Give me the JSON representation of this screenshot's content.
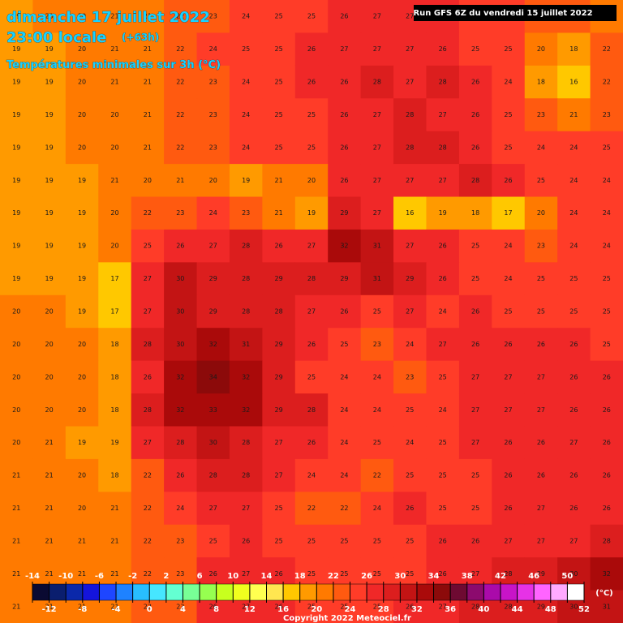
{
  "header": {
    "date": "dimanche 17 juillet 2022",
    "time": "23:00 locale",
    "lead": "(+63h)",
    "product": "Températures minimales sur 3h (°C)",
    "run": "Run GFS 6Z du vendredi 15 juillet 2022"
  },
  "grid": {
    "rows": [
      [
        19,
        20,
        20,
        21,
        21,
        22,
        23,
        24,
        25,
        25,
        26,
        27,
        27,
        26,
        25,
        24,
        22,
        22,
        20
      ],
      [
        19,
        19,
        20,
        21,
        21,
        22,
        24,
        25,
        25,
        26,
        27,
        27,
        27,
        26,
        25,
        25,
        20,
        18,
        22
      ],
      [
        19,
        19,
        20,
        21,
        21,
        22,
        23,
        24,
        25,
        26,
        26,
        28,
        27,
        28,
        26,
        24,
        18,
        16,
        22
      ],
      [
        19,
        19,
        20,
        20,
        21,
        22,
        23,
        24,
        25,
        25,
        26,
        27,
        28,
        27,
        26,
        25,
        23,
        21,
        23
      ],
      [
        19,
        19,
        20,
        20,
        21,
        22,
        23,
        24,
        25,
        25,
        26,
        27,
        28,
        28,
        26,
        25,
        24,
        24,
        25
      ],
      [
        19,
        19,
        19,
        21,
        20,
        21,
        20,
        19,
        21,
        20,
        26,
        27,
        27,
        27,
        28,
        26,
        25,
        24,
        24
      ],
      [
        19,
        19,
        19,
        20,
        22,
        23,
        24,
        23,
        21,
        19,
        29,
        27,
        16,
        19,
        18,
        17,
        20,
        24,
        24
      ],
      [
        19,
        19,
        19,
        20,
        25,
        26,
        27,
        28,
        26,
        27,
        32,
        31,
        27,
        26,
        25,
        24,
        23,
        24,
        24
      ],
      [
        19,
        19,
        19,
        17,
        27,
        30,
        29,
        28,
        29,
        28,
        29,
        31,
        29,
        26,
        25,
        24,
        25,
        25,
        25
      ],
      [
        20,
        20,
        19,
        17,
        27,
        30,
        29,
        28,
        28,
        27,
        26,
        25,
        27,
        24,
        26,
        25,
        25,
        25,
        25
      ],
      [
        20,
        20,
        20,
        18,
        28,
        30,
        32,
        31,
        29,
        26,
        25,
        23,
        24,
        27,
        26,
        26,
        26,
        26,
        25
      ],
      [
        20,
        20,
        20,
        18,
        26,
        32,
        34,
        32,
        29,
        25,
        24,
        24,
        23,
        25,
        27,
        27,
        27,
        26,
        26
      ],
      [
        20,
        20,
        20,
        18,
        28,
        32,
        33,
        32,
        29,
        28,
        24,
        24,
        25,
        24,
        27,
        27,
        27,
        26,
        26
      ],
      [
        20,
        21,
        19,
        19,
        27,
        28,
        30,
        28,
        27,
        26,
        24,
        25,
        24,
        25,
        27,
        26,
        26,
        27,
        26
      ],
      [
        21,
        21,
        20,
        18,
        22,
        26,
        28,
        28,
        27,
        24,
        24,
        22,
        25,
        25,
        25,
        26,
        26,
        26,
        26
      ],
      [
        21,
        21,
        20,
        21,
        22,
        24,
        27,
        27,
        25,
        22,
        22,
        24,
        26,
        25,
        25,
        26,
        27,
        26,
        26
      ],
      [
        21,
        21,
        21,
        21,
        22,
        23,
        25,
        26,
        25,
        25,
        25,
        25,
        25,
        26,
        26,
        27,
        27,
        27,
        28
      ],
      [
        21,
        21,
        21,
        21,
        22,
        23,
        26,
        27,
        26,
        25,
        25,
        25,
        25,
        26,
        27,
        28,
        29,
        30,
        32
      ],
      [
        21,
        21,
        21,
        21,
        22,
        23,
        26,
        27,
        26,
        25,
        25,
        25,
        26,
        27,
        28,
        28,
        29,
        30,
        31
      ]
    ]
  },
  "legend": {
    "unit": "(°C)",
    "ticks": [
      -14,
      -12,
      -10,
      -8,
      -6,
      -4,
      -2,
      0,
      2,
      4,
      6,
      8,
      10,
      12,
      14,
      16,
      18,
      20,
      22,
      24,
      26,
      28,
      30,
      32,
      34,
      36,
      38,
      40,
      42,
      44,
      46,
      48,
      50,
      52
    ],
    "colors": [
      "#0a0a32",
      "#0a1e6e",
      "#0a28aa",
      "#1414dc",
      "#1e46ff",
      "#1e82ff",
      "#28beff",
      "#46e6ff",
      "#64ffd2",
      "#78ff96",
      "#96ff50",
      "#c8ff1e",
      "#f0ff1e",
      "#ffff50",
      "#ffe650",
      "#ffc800",
      "#ff9a00",
      "#ff7a00",
      "#ff5a10",
      "#ff3c28",
      "#f02828",
      "#dc1e1e",
      "#c31414",
      "#aa0a0a",
      "#8c0a0a",
      "#6e0a32",
      "#8c0a6e",
      "#aa0aaa",
      "#c814c8",
      "#e632e6",
      "#ff64ff",
      "#ffaaff",
      "#ffffff"
    ]
  },
  "footer": {
    "copyright": "Copyright 2022 Meteociel.fr"
  }
}
